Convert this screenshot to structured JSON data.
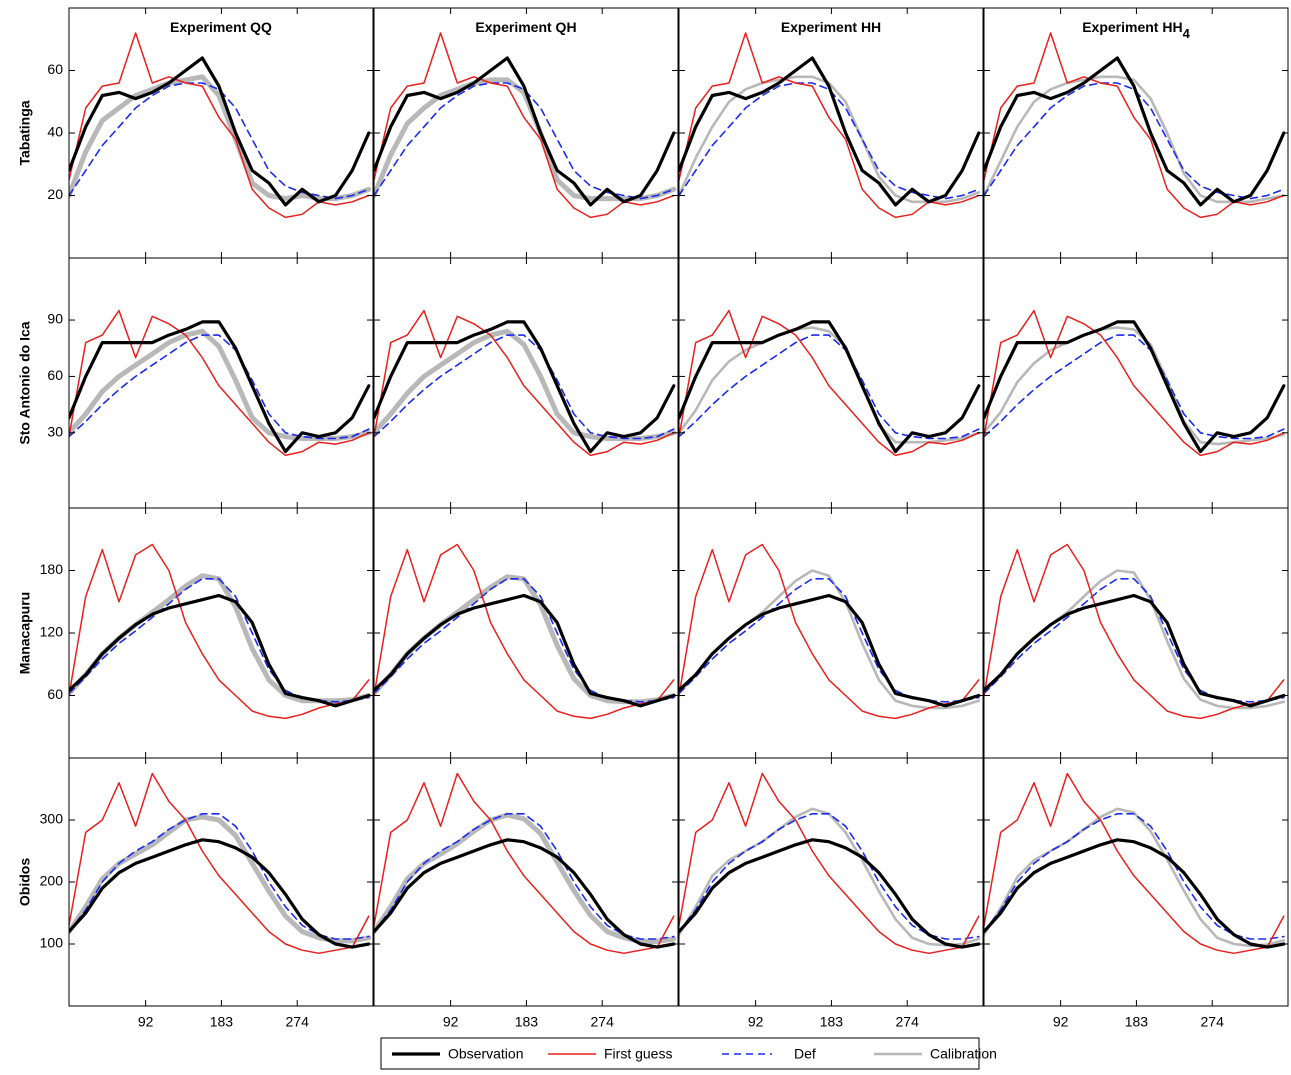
{
  "chart_data": {
    "type": "line",
    "x": [
      0,
      20,
      40,
      60,
      80,
      100,
      120,
      140,
      160,
      180,
      200,
      220,
      240,
      260,
      280,
      300,
      320,
      340,
      360
    ],
    "xlim": [
      0,
      365
    ],
    "xticks": [
      92,
      183,
      274
    ],
    "columns": [
      {
        "title": "Experiment QQ"
      },
      {
        "title": "Experiment QH"
      },
      {
        "title": "Experiment HH"
      },
      {
        "title": "Experiment HH",
        "subscript": "4"
      }
    ],
    "series": [
      {
        "name": "Observation",
        "color": "#000000"
      },
      {
        "name": "First guess",
        "color": "#e8201c"
      },
      {
        "name": "Def",
        "color": "#1a2bf0",
        "dashed": true
      },
      {
        "name": "Calibration",
        "color": "#b8b8b8"
      }
    ],
    "rows": [
      {
        "label": "Tabatinga",
        "ylim": [
          0,
          80
        ],
        "yticks": [
          20,
          40,
          60
        ],
        "values": [
          [
            28,
            42,
            52,
            53,
            51,
            53,
            56,
            60,
            64,
            55,
            40,
            28,
            24,
            17,
            22,
            18,
            20,
            28,
            40
          ],
          [
            25,
            48,
            55,
            56,
            72,
            56,
            58,
            56,
            55,
            45,
            38,
            22,
            16,
            13,
            14,
            18,
            17,
            18,
            20
          ],
          [
            20,
            28,
            36,
            42,
            48,
            52,
            55,
            56,
            56,
            54,
            48,
            38,
            28,
            23,
            21,
            20,
            19,
            20,
            22
          ]
        ],
        "calibration": [
          [
            20,
            34,
            44,
            48,
            52,
            54,
            56,
            57,
            58,
            52,
            38,
            24,
            20,
            19,
            20,
            19,
            19,
            20,
            22
          ],
          [
            20,
            33,
            43,
            48,
            52,
            54,
            56,
            57,
            57,
            53,
            40,
            25,
            20,
            19,
            19,
            19,
            19,
            20,
            22
          ],
          [
            20,
            32,
            42,
            50,
            54,
            56,
            57,
            58,
            58,
            56,
            50,
            38,
            26,
            20,
            18,
            18,
            18,
            19,
            21
          ],
          [
            20,
            31,
            42,
            50,
            54,
            56,
            57,
            58,
            58,
            57,
            51,
            40,
            27,
            20,
            18,
            18,
            18,
            19,
            20
          ]
        ]
      },
      {
        "label": "Sto Antonio do Ica",
        "ylim": [
          -10,
          123
        ],
        "yticks": [
          30,
          60,
          90
        ],
        "values": [
          [
            38,
            60,
            78,
            78,
            78,
            78,
            82,
            85,
            89,
            89,
            75,
            55,
            35,
            20,
            30,
            28,
            30,
            38,
            55
          ],
          [
            28,
            78,
            82,
            95,
            70,
            92,
            88,
            82,
            70,
            55,
            45,
            35,
            25,
            18,
            20,
            25,
            24,
            26,
            30
          ],
          [
            28,
            36,
            45,
            53,
            60,
            66,
            72,
            78,
            82,
            82,
            74,
            58,
            40,
            30,
            28,
            27,
            27,
            28,
            32
          ]
        ],
        "calibration": [
          [
            30,
            40,
            52,
            60,
            66,
            72,
            78,
            82,
            84,
            76,
            58,
            38,
            30,
            28,
            27,
            27,
            27,
            28,
            30
          ],
          [
            30,
            40,
            51,
            60,
            66,
            72,
            78,
            82,
            84,
            77,
            60,
            40,
            30,
            28,
            27,
            27,
            27,
            28,
            30
          ],
          [
            30,
            42,
            58,
            68,
            74,
            78,
            82,
            85,
            86,
            84,
            76,
            56,
            34,
            25,
            25,
            25,
            26,
            27,
            30
          ],
          [
            30,
            41,
            57,
            67,
            74,
            78,
            82,
            85,
            86,
            85,
            77,
            58,
            36,
            25,
            24,
            25,
            26,
            27,
            29
          ]
        ]
      },
      {
        "label": "Manacapuru",
        "ylim": [
          0,
          240
        ],
        "yticks": [
          60,
          120,
          180
        ],
        "values": [
          [
            65,
            80,
            100,
            115,
            128,
            138,
            144,
            148,
            152,
            156,
            150,
            130,
            90,
            62,
            58,
            55,
            50,
            55,
            60
          ],
          [
            60,
            155,
            200,
            150,
            195,
            205,
            180,
            130,
            100,
            75,
            60,
            45,
            40,
            38,
            42,
            48,
            52,
            55,
            75
          ],
          [
            62,
            78,
            95,
            110,
            122,
            135,
            148,
            162,
            172,
            172,
            155,
            120,
            85,
            65,
            57,
            55,
            54,
            55,
            58
          ]
        ],
        "calibration": [
          [
            62,
            80,
            100,
            115,
            128,
            140,
            152,
            165,
            175,
            172,
            145,
            105,
            75,
            60,
            55,
            55,
            55,
            56,
            60
          ],
          [
            62,
            80,
            100,
            115,
            128,
            140,
            152,
            164,
            174,
            172,
            147,
            108,
            76,
            60,
            55,
            54,
            54,
            56,
            60
          ],
          [
            62,
            80,
            100,
            115,
            128,
            140,
            155,
            170,
            180,
            175,
            150,
            110,
            75,
            55,
            50,
            48,
            48,
            50,
            55
          ],
          [
            62,
            80,
            100,
            115,
            128,
            140,
            155,
            170,
            180,
            178,
            152,
            112,
            76,
            56,
            50,
            48,
            48,
            50,
            54
          ]
        ]
      },
      {
        "label": "Obidos",
        "ylim": [
          0,
          400
        ],
        "yticks": [
          100,
          200,
          300
        ],
        "values": [
          [
            120,
            150,
            190,
            215,
            230,
            240,
            250,
            260,
            268,
            265,
            255,
            240,
            215,
            180,
            140,
            115,
            100,
            95,
            100
          ],
          [
            130,
            280,
            300,
            360,
            290,
            375,
            330,
            300,
            250,
            210,
            180,
            150,
            120,
            100,
            90,
            85,
            90,
            95,
            145
          ],
          [
            120,
            155,
            200,
            230,
            250,
            265,
            285,
            300,
            310,
            310,
            290,
            250,
            200,
            160,
            130,
            115,
            108,
            108,
            112
          ]
        ],
        "calibration": [
          [
            120,
            160,
            205,
            230,
            245,
            260,
            280,
            300,
            305,
            300,
            275,
            230,
            185,
            145,
            120,
            110,
            105,
            105,
            110
          ],
          [
            120,
            160,
            205,
            230,
            245,
            262,
            282,
            300,
            308,
            302,
            278,
            232,
            186,
            146,
            120,
            110,
            104,
            104,
            108
          ],
          [
            115,
            160,
            210,
            235,
            250,
            265,
            285,
            305,
            318,
            310,
            280,
            235,
            185,
            140,
            110,
            100,
            98,
            100,
            108
          ],
          [
            115,
            158,
            208,
            235,
            250,
            265,
            285,
            305,
            318,
            312,
            282,
            236,
            186,
            140,
            110,
            100,
            97,
            99,
            106
          ]
        ]
      }
    ]
  }
}
